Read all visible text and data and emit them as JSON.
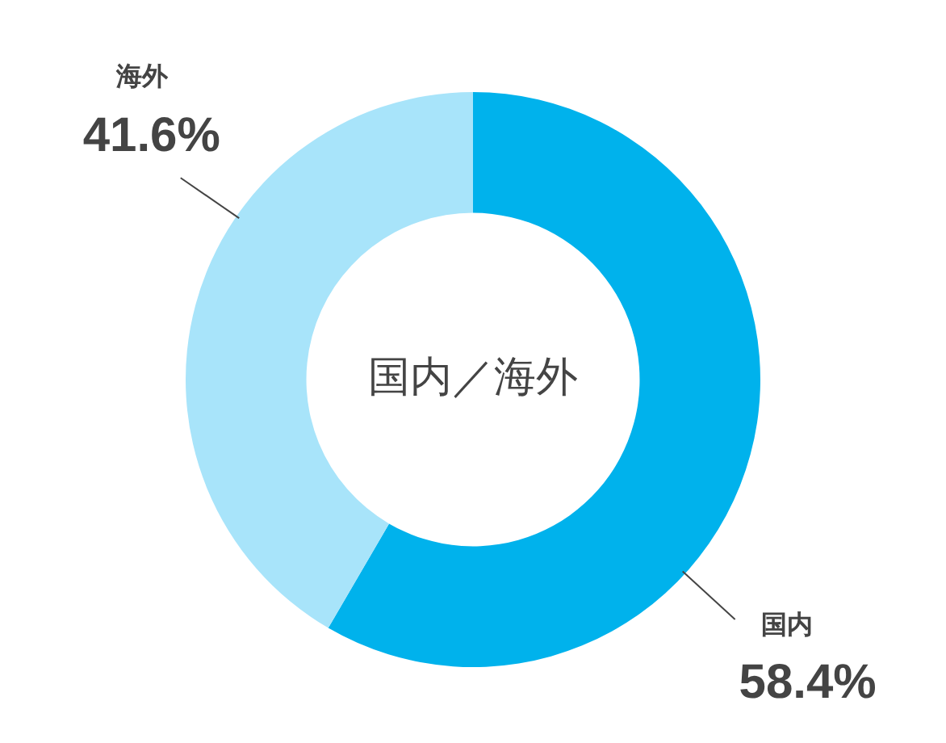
{
  "chart_data": {
    "type": "donut",
    "title": "国内／海外",
    "categories": [
      "国内",
      "海外"
    ],
    "values": [
      58.4,
      41.6
    ],
    "colors": [
      "#00b2ec",
      "#a8e4fa"
    ],
    "value_labels": [
      "58.4%",
      "41.6%"
    ],
    "legend": false
  }
}
